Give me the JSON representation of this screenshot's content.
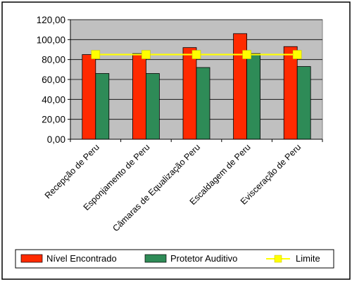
{
  "chart_data": {
    "type": "bar",
    "categories": [
      "Recepção de Peru",
      "Esponjamento de Peru",
      "Câmaras de Equalização Peru",
      "Escaldagem de Peru",
      "Evisceração de Peru"
    ],
    "series": [
      {
        "name": "Nível Encontrado",
        "kind": "bar",
        "color": "#ff2a00",
        "values": [
          85,
          86,
          92,
          106,
          93
        ]
      },
      {
        "name": "Protetor Auditivo",
        "kind": "bar",
        "color": "#2e8b57",
        "values": [
          66,
          66,
          72,
          86,
          73
        ]
      },
      {
        "name": "Limite",
        "kind": "line",
        "color": "#ffff00",
        "values": [
          85,
          85,
          85,
          85,
          85
        ]
      }
    ],
    "y_ticks": [
      "0,00",
      "20,00",
      "40,00",
      "60,00",
      "80,00",
      "100,00",
      "120,00"
    ],
    "ylim": [
      0,
      120
    ],
    "grid": true,
    "legend_position": "bottom",
    "plot_background": "#c0c0c0"
  }
}
